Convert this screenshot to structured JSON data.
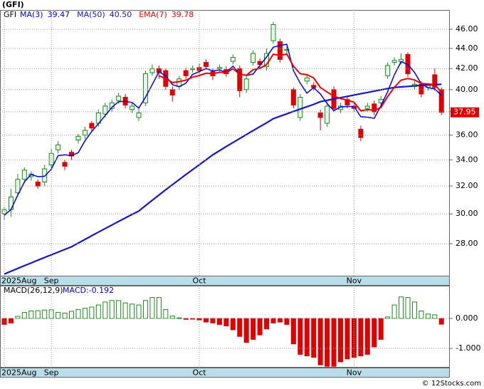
{
  "chart_data": [
    {
      "type": "candlestick",
      "title": "(GFI)",
      "ticker": "GFI",
      "categories": [
        "2025Aug",
        null,
        null,
        null,
        null,
        null,
        null,
        "Sep",
        null,
        null,
        null,
        null,
        null,
        null,
        null,
        null,
        null,
        null,
        null,
        null,
        null,
        null,
        null,
        null,
        null,
        null,
        null,
        null,
        null,
        "Oct",
        null,
        null,
        null,
        null,
        null,
        null,
        null,
        null,
        null,
        null,
        null,
        null,
        null,
        null,
        null,
        null,
        null,
        null,
        null,
        null,
        null,
        null,
        "Nov",
        null,
        null,
        null,
        null,
        null,
        null,
        null,
        null,
        null,
        null,
        null,
        null,
        null
      ],
      "open": [
        30.0,
        30.3,
        31.5,
        32.5,
        32.7,
        32.3,
        32.3,
        33.6,
        34.8,
        33.8,
        34.6,
        35.6,
        36.0,
        37.0,
        37.0,
        37.8,
        38.3,
        39.0,
        39.3,
        38.2,
        37.5,
        38.8,
        41.6,
        42.0,
        41.8,
        40.0,
        40.3,
        41.8,
        41.9,
        42.1,
        42.6,
        41.7,
        42.0,
        41.9,
        42.7,
        42.0,
        40.0,
        42.6,
        42.7,
        42.2,
        44.8,
        44.7,
        43.8,
        40.0,
        37.5,
        40.8,
        40.4,
        37.9,
        37.0,
        40.0,
        38.2,
        39.1,
        38.5,
        36.5,
        38.3,
        38.7,
        38.8,
        41.3,
        42.6,
        42.7,
        43.4,
        40.3,
        40.5,
        40.2,
        41.4,
        40.0
      ],
      "high": [
        30.5,
        31.8,
        32.9,
        33.4,
        33.1,
        32.5,
        33.6,
        34.9,
        35.5,
        34.0,
        34.8,
        36.1,
        36.7,
        37.2,
        38.2,
        38.8,
        39.1,
        39.7,
        39.6,
        38.8,
        38.4,
        41.8,
        42.4,
        42.3,
        42.0,
        40.3,
        41.3,
        42.1,
        42.3,
        42.5,
        42.9,
        42.0,
        42.4,
        42.2,
        43.4,
        42.3,
        41.3,
        43.8,
        43.0,
        44.0,
        46.8,
        45.0,
        44.2,
        40.2,
        39.6,
        41.5,
        40.7,
        38.2,
        38.9,
        40.3,
        38.8,
        39.4,
        38.8,
        36.8,
        38.8,
        39.0,
        39.4,
        42.6,
        43.1,
        43.5,
        43.6,
        40.8,
        40.8,
        40.6,
        42.0,
        40.2
      ],
      "low": [
        29.6,
        29.8,
        31.2,
        32.2,
        32.4,
        31.8,
        32.0,
        33.3,
        34.5,
        33.2,
        34.0,
        35.3,
        35.7,
        36.3,
        36.7,
        37.5,
        38.0,
        38.7,
        38.3,
        37.9,
        37.2,
        38.5,
        41.3,
        41.0,
        40.0,
        38.9,
        40.0,
        41.0,
        41.6,
        41.5,
        41.9,
        40.9,
        41.7,
        41.2,
        42.4,
        39.3,
        39.7,
        42.3,
        42.1,
        41.8,
        44.5,
        42.6,
        43.5,
        38.3,
        37.2,
        40.5,
        39.9,
        36.4,
        36.7,
        38.0,
        37.9,
        38.3,
        38.0,
        35.5,
        38.0,
        37.7,
        38.5,
        41.0,
        42.3,
        42.4,
        41.2,
        40.0,
        39.3,
        39.9,
        39.9,
        37.7
      ],
      "close": [
        30.3,
        31.2,
        32.5,
        33.2,
        32.9,
        32.0,
        33.3,
        34.5,
        35.2,
        33.5,
        34.3,
        35.9,
        36.4,
        36.6,
        37.9,
        38.5,
        38.8,
        39.4,
        38.6,
        38.5,
        37.9,
        41.5,
        42.0,
        41.6,
        40.3,
        39.5,
        41.0,
        41.3,
        42.0,
        41.8,
        42.2,
        41.3,
        42.1,
        41.5,
        43.1,
        39.9,
        41.0,
        43.5,
        42.4,
        43.5,
        46.5,
        42.9,
        43.9,
        38.6,
        39.3,
        41.1,
        40.2,
        37.5,
        38.5,
        38.3,
        38.5,
        38.6,
        38.3,
        35.8,
        38.5,
        38.0,
        39.1,
        42.3,
        42.8,
        42.9,
        41.5,
        40.5,
        39.6,
        40.4,
        40.2,
        37.95
      ],
      "up_color": "#1a8a1a",
      "down_color": "#e00000",
      "last_label": "37.95",
      "overlays": [
        {
          "name": "MA(3)",
          "color": "#0000ee",
          "width": 1.5,
          "legend_label": "39.47",
          "values": [
            29.9,
            30.3,
            31.33,
            32.3,
            32.87,
            32.7,
            32.73,
            33.27,
            34.33,
            34.4,
            34.33,
            34.57,
            35.53,
            36.3,
            36.97,
            37.67,
            38.4,
            38.9,
            38.93,
            38.83,
            38.33,
            39.3,
            40.47,
            41.7,
            41.3,
            40.47,
            40.27,
            40.6,
            41.43,
            41.7,
            42.0,
            41.77,
            41.87,
            41.63,
            42.23,
            41.5,
            41.33,
            41.47,
            42.3,
            43.13,
            44.13,
            44.3,
            44.43,
            41.8,
            40.6,
            39.67,
            40.2,
            39.6,
            38.73,
            38.1,
            38.43,
            38.47,
            38.47,
            37.57,
            37.53,
            37.43,
            38.53,
            39.8,
            41.4,
            42.67,
            42.4,
            41.63,
            40.53,
            40.17,
            40.07,
            39.47
          ]
        },
        {
          "name": "MA(50)",
          "color": "#1515cc",
          "width": 2.2,
          "legend_label": "40.50",
          "values": [
            26.1,
            26.27,
            26.44,
            26.61,
            26.78,
            26.95,
            27.12,
            27.29,
            27.46,
            27.63,
            27.8,
            28.04,
            28.28,
            28.52,
            28.76,
            29.0,
            29.24,
            29.48,
            29.72,
            29.96,
            30.2,
            30.58,
            30.96,
            31.34,
            31.72,
            32.1,
            32.48,
            32.86,
            33.24,
            33.62,
            34.0,
            34.4,
            34.73,
            35.06,
            35.39,
            35.72,
            36.05,
            36.38,
            36.71,
            37.04,
            37.4,
            37.61,
            37.82,
            38.03,
            38.24,
            38.45,
            38.66,
            38.9,
            39.02,
            39.14,
            39.26,
            39.38,
            39.5,
            39.62,
            39.74,
            39.86,
            39.98,
            40.1,
            40.2,
            40.25,
            40.3,
            40.35,
            40.4,
            40.43,
            40.46,
            40.5
          ]
        },
        {
          "name": "EMA(7)",
          "color": "#ee0000",
          "width": 2,
          "legend_label": "39.78",
          "values": [
            null,
            null,
            null,
            null,
            null,
            null,
            null,
            null,
            null,
            null,
            null,
            null,
            null,
            null,
            null,
            null,
            null,
            null,
            null,
            null,
            null,
            null,
            null,
            41.3,
            41.05,
            40.66,
            40.75,
            40.89,
            41.17,
            41.33,
            41.55,
            41.49,
            41.64,
            41.6,
            41.98,
            41.46,
            41.35,
            41.89,
            42.02,
            42.39,
            43.42,
            43.29,
            43.44,
            42.23,
            41.5,
            41.4,
            41.1,
            40.2,
            39.78,
            39.41,
            39.18,
            39.04,
            38.85,
            38.09,
            38.19,
            38.14,
            38.38,
            39.36,
            40.22,
            40.89,
            41.04,
            40.91,
            40.58,
            40.54,
            40.46,
            39.78
          ]
        }
      ],
      "log_scale": true,
      "grid": true,
      "ylim": [
        26,
        48.1
      ],
      "yticks": [
        {
          "value": 28,
          "label": "28.00"
        },
        {
          "value": 30,
          "label": "30.00"
        },
        {
          "value": 32,
          "label": "32.00"
        },
        {
          "value": 34,
          "label": "34.00"
        },
        {
          "value": 36,
          "label": "36.00"
        },
        {
          "value": 38,
          "label": "38.00"
        },
        {
          "value": 40,
          "label": "40.00"
        },
        {
          "value": 42,
          "label": "42.00"
        },
        {
          "value": 44,
          "label": "44.00"
        },
        {
          "value": 46,
          "label": "46.00"
        }
      ]
    },
    {
      "type": "bar",
      "title": "MACD(26,12,9)",
      "legend_label": "MACD:-0.192",
      "pos_color": "#1a8a1a",
      "neg_color": "#e00000",
      "values": [
        -0.2,
        -0.15,
        0.07,
        0.2,
        0.25,
        0.26,
        0.28,
        0.29,
        0.2,
        0.18,
        0.24,
        0.3,
        0.34,
        0.38,
        0.45,
        0.55,
        0.6,
        0.6,
        0.52,
        0.48,
        0.45,
        0.6,
        0.7,
        0.7,
        0.3,
        0.08,
        0.02,
        -0.03,
        -0.02,
        -0.05,
        -0.12,
        -0.15,
        -0.2,
        -0.25,
        -0.38,
        -0.6,
        -0.8,
        -0.7,
        -0.55,
        -0.35,
        -0.15,
        -0.12,
        -0.2,
        -0.85,
        -1.2,
        -1.25,
        -1.3,
        -1.55,
        -1.6,
        -1.6,
        -1.45,
        -1.35,
        -1.3,
        -1.25,
        -1.2,
        -0.95,
        -0.7,
        0.05,
        0.45,
        0.72,
        0.7,
        0.55,
        0.25,
        0.15,
        0.12,
        -0.192
      ],
      "grid": true,
      "ylim": [
        -1.643,
        1.095
      ],
      "yticks": [
        {
          "value": -1,
          "label": "-1.000"
        },
        {
          "value": 0,
          "label": "0.000"
        }
      ]
    }
  ],
  "credit": "© 12Stocks.com"
}
